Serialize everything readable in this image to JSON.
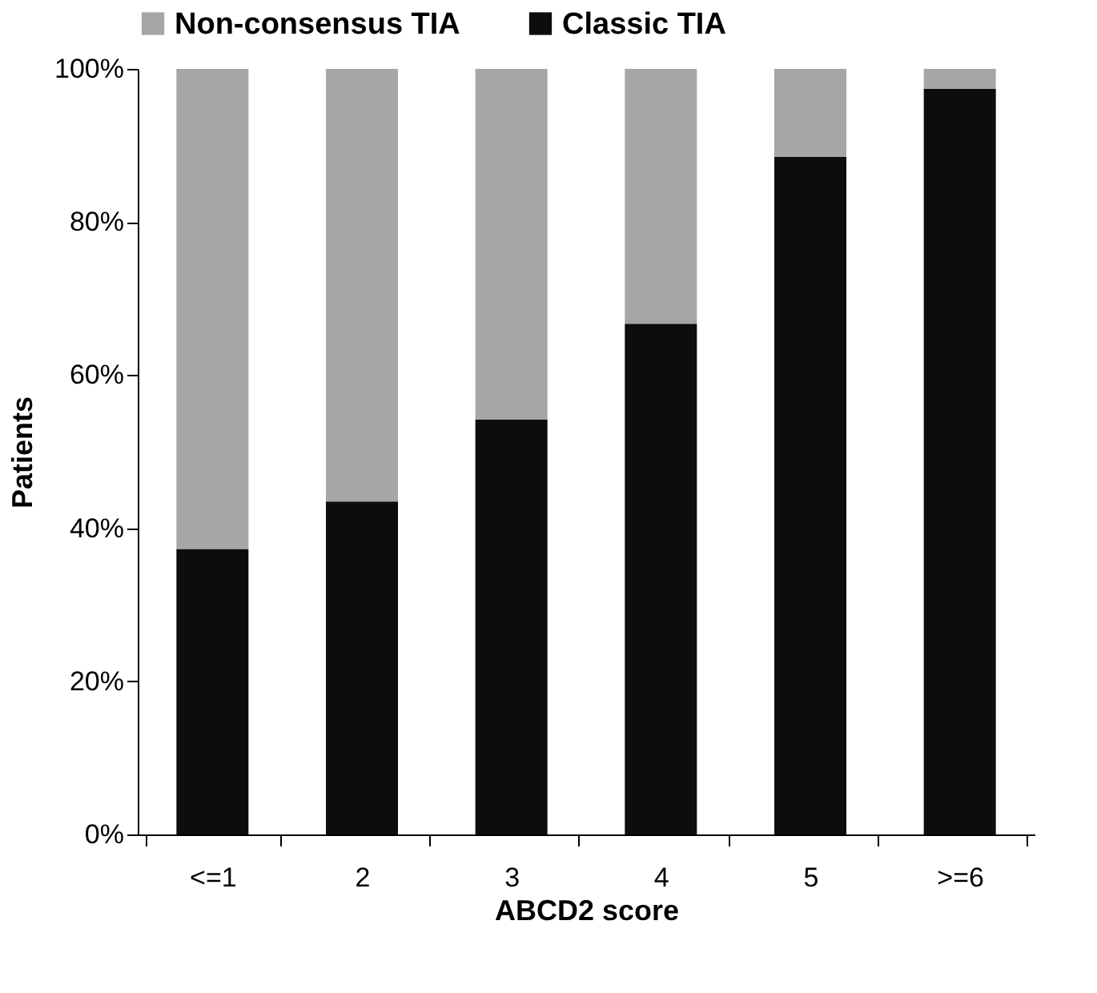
{
  "chart_data": {
    "type": "bar",
    "stacked": true,
    "xlabel": "ABCD2 score",
    "ylabel": "Patients",
    "categories": [
      "<=1",
      "2",
      "3",
      "4",
      "5",
      ">=6"
    ],
    "series": [
      {
        "name": "Classic TIA",
        "color": "#0d0d0d",
        "values": [
          37.3,
          43.5,
          54.2,
          66.7,
          88.5,
          97.4
        ]
      },
      {
        "name": "Non-consensus TIA",
        "color": "#a6a6a6",
        "values": [
          62.7,
          56.5,
          45.8,
          33.3,
          11.5,
          2.6
        ]
      }
    ],
    "ylim": [
      0,
      100
    ],
    "yticks": [
      {
        "value": 0,
        "label": "0%"
      },
      {
        "value": 20,
        "label": "20%"
      },
      {
        "value": 40,
        "label": "40%"
      },
      {
        "value": 60,
        "label": "60%"
      },
      {
        "value": 80,
        "label": "80%"
      },
      {
        "value": 100,
        "label": "100%"
      }
    ],
    "grid": false,
    "legend": "top"
  }
}
